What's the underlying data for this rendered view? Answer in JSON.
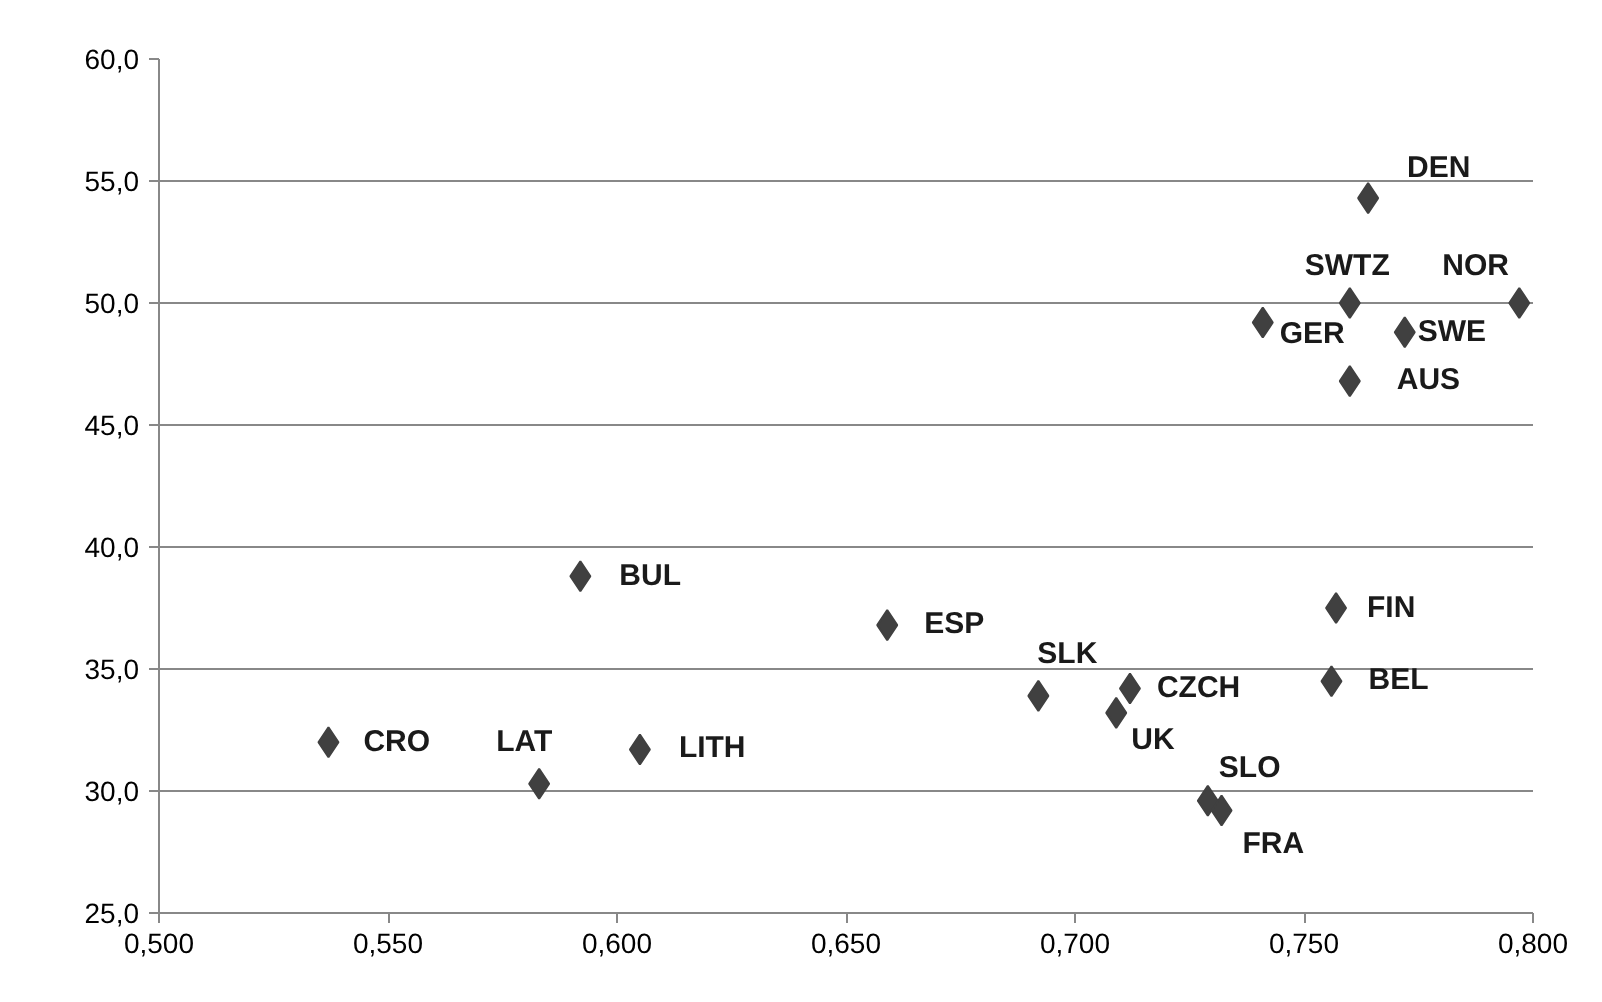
{
  "chart_data": {
    "type": "scatter",
    "marker": "diamond",
    "grid": "y",
    "x": [
      0.537,
      0.583,
      0.592,
      0.605,
      0.659,
      0.692,
      0.712,
      0.709,
      0.729,
      0.732,
      0.757,
      0.756,
      0.764,
      0.76,
      0.797,
      0.741,
      0.772,
      0.76
    ],
    "series": [
      {
        "color": "#404040",
        "values": [
          32.0,
          30.3,
          38.8,
          31.7,
          36.8,
          33.9,
          34.2,
          33.2,
          29.6,
          29.2,
          37.5,
          34.5,
          54.3,
          50.0,
          50.0,
          49.2,
          48.8,
          46.8
        ]
      }
    ],
    "xlim": [
      0.5,
      0.8
    ],
    "ylim": [
      25,
      60
    ],
    "xticks": [
      {
        "value": 0.5,
        "label": "0,500"
      },
      {
        "value": 0.55,
        "label": "0,550"
      },
      {
        "value": 0.6,
        "label": "0,600"
      },
      {
        "value": 0.65,
        "label": "0,650"
      },
      {
        "value": 0.7,
        "label": "0,700"
      },
      {
        "value": 0.75,
        "label": "0,750"
      },
      {
        "value": 0.8,
        "label": "0,800"
      }
    ],
    "yticks": [
      {
        "value": 25,
        "label": "25,0"
      },
      {
        "value": 30,
        "label": "30,0"
      },
      {
        "value": 35,
        "label": "35,0"
      },
      {
        "value": 40,
        "label": "40,0"
      },
      {
        "value": 45,
        "label": "45,0"
      },
      {
        "value": 50,
        "label": "50,0"
      },
      {
        "value": 55,
        "label": "55,0"
      },
      {
        "value": 60,
        "label": "60,0"
      }
    ],
    "annotations": [
      {
        "text": "CRO",
        "x": 0.537,
        "y": 32.0
      },
      {
        "text": "LAT",
        "x": 0.583,
        "y": 30.3
      },
      {
        "text": "BUL",
        "x": 0.592,
        "y": 38.8
      },
      {
        "text": "LITH",
        "x": 0.605,
        "y": 31.7
      },
      {
        "text": "ESP",
        "x": 0.659,
        "y": 36.8
      },
      {
        "text": "SLK",
        "x": 0.692,
        "y": 33.9
      },
      {
        "text": "CZCH",
        "x": 0.712,
        "y": 34.2
      },
      {
        "text": "UK",
        "x": 0.709,
        "y": 33.2
      },
      {
        "text": "SLO",
        "x": 0.729,
        "y": 29.6
      },
      {
        "text": "FRA",
        "x": 0.732,
        "y": 29.2
      },
      {
        "text": "FIN",
        "x": 0.757,
        "y": 37.5
      },
      {
        "text": "BEL",
        "x": 0.756,
        "y": 34.5
      },
      {
        "text": "DEN",
        "x": 0.764,
        "y": 54.3
      },
      {
        "text": "SWTZ",
        "x": 0.76,
        "y": 50.0
      },
      {
        "text": "NOR",
        "x": 0.797,
        "y": 50.0
      },
      {
        "text": "GER",
        "x": 0.741,
        "y": 49.2
      },
      {
        "text": "SWE",
        "x": 0.772,
        "y": 48.8
      },
      {
        "text": "AUS",
        "x": 0.76,
        "y": 46.8
      }
    ]
  }
}
